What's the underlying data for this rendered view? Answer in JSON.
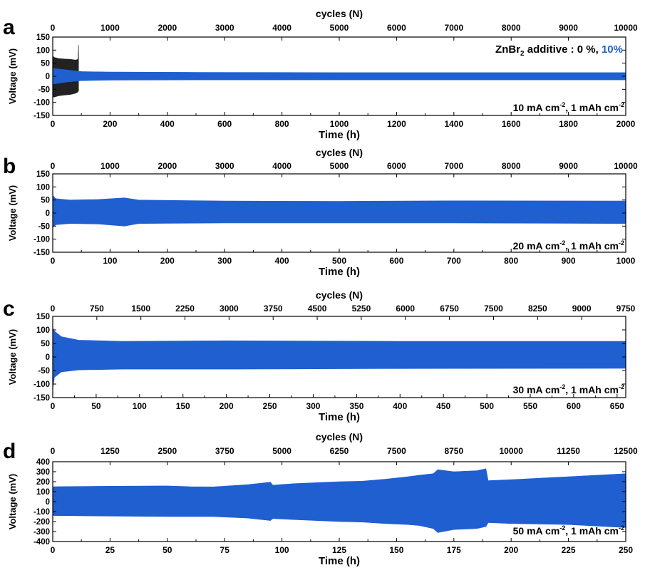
{
  "chart_data": [
    {
      "type": "line",
      "panel_label": "a",
      "xlabel": "Time (h)",
      "ylabel": "Voltage (mV)",
      "x2label": "cycles (N)",
      "xlim": [
        0,
        2000
      ],
      "ylim": [
        -150,
        150
      ],
      "xticks": [
        0,
        200,
        400,
        600,
        800,
        1000,
        1200,
        1400,
        1600,
        1800,
        2000
      ],
      "x2ticks": [
        0,
        1000,
        2000,
        3000,
        4000,
        5000,
        6000,
        7000,
        8000,
        9000,
        10000
      ],
      "yticks": [
        -150,
        -100,
        -50,
        0,
        50,
        100,
        150
      ],
      "legend_text": {
        "prefix": "ZnBr",
        "sub": "2",
        "mid": " additive : 0 %, ",
        "accent": "10%"
      },
      "condition": {
        "c1": "10 mA cm",
        "s1": "-2",
        "c2": ", 1 mAh cm",
        "s2": "-2"
      },
      "series": [
        {
          "name": "0 %",
          "color": "#222222",
          "x": [
            0,
            5,
            20,
            40,
            60,
            80,
            88,
            90
          ],
          "upper": [
            78,
            72,
            68,
            66,
            65,
            62,
            65,
            120
          ],
          "lower": [
            -78,
            -80,
            -75,
            -72,
            -70,
            -65,
            -60,
            -55
          ]
        },
        {
          "name": "10%",
          "color": "#1f5fd0",
          "x": [
            0,
            50,
            100,
            200,
            500,
            1000,
            1500,
            2000
          ],
          "upper": [
            30,
            24,
            18,
            16,
            15,
            14,
            14,
            14
          ],
          "lower": [
            -30,
            -22,
            -17,
            -15,
            -14,
            -14,
            -14,
            -14
          ]
        }
      ]
    },
    {
      "type": "line",
      "panel_label": "b",
      "xlabel": "Time (h)",
      "ylabel": "Voltage (mV)",
      "x2label": "cycles (N)",
      "xlim": [
        0,
        1000
      ],
      "ylim": [
        -150,
        150
      ],
      "xticks": [
        0,
        100,
        200,
        300,
        400,
        500,
        600,
        700,
        800,
        900,
        1000
      ],
      "x2ticks": [
        0,
        1000,
        2000,
        3000,
        4000,
        5000,
        6000,
        7000,
        8000,
        9000,
        10000
      ],
      "yticks": [
        -150,
        -100,
        -50,
        0,
        50,
        100,
        150
      ],
      "condition": {
        "c1": "20 mA cm",
        "s1": "-2",
        "c2": ", 1 mAh cm",
        "s2": "-2"
      },
      "series": [
        {
          "name": "10%",
          "color": "#1f5fd0",
          "x": [
            0,
            5,
            30,
            80,
            125,
            150,
            300,
            500,
            700,
            1000
          ],
          "upper": [
            68,
            55,
            50,
            52,
            58,
            50,
            46,
            45,
            47,
            46
          ],
          "lower": [
            -55,
            -45,
            -40,
            -42,
            -50,
            -40,
            -38,
            -38,
            -38,
            -40
          ]
        }
      ]
    },
    {
      "type": "line",
      "panel_label": "c",
      "xlabel": "Time (h)",
      "ylabel": "Voltage (mV)",
      "x2label": "cycles (N)",
      "xlim": [
        0,
        660
      ],
      "ylim": [
        -150,
        150
      ],
      "xticks": [
        0,
        50,
        100,
        150,
        200,
        250,
        300,
        350,
        400,
        450,
        500,
        550,
        600,
        650
      ],
      "x2ticks": [
        0,
        750,
        1500,
        2250,
        3000,
        3750,
        4500,
        5250,
        6000,
        6750,
        7500,
        8250,
        9000,
        9750
      ],
      "yticks": [
        -150,
        -100,
        -50,
        0,
        50,
        100,
        150
      ],
      "condition": {
        "c1": "30 mA cm",
        "s1": "-2",
        "c2": ", 1 mAh cm",
        "s2": "-2"
      },
      "series": [
        {
          "name": "10%",
          "color": "#1f5fd0",
          "x": [
            0,
            2,
            10,
            30,
            80,
            200,
            400,
            660
          ],
          "upper": [
            110,
            95,
            75,
            62,
            58,
            60,
            58,
            58
          ],
          "lower": [
            -120,
            -75,
            -55,
            -48,
            -45,
            -45,
            -43,
            -42
          ]
        }
      ]
    },
    {
      "type": "line",
      "panel_label": "d",
      "xlabel": "Time (h)",
      "ylabel": "Voltage (mV)",
      "x2label": "cycles (N)",
      "xlim": [
        0,
        250
      ],
      "ylim": [
        -400,
        400
      ],
      "xticks": [
        0,
        25,
        50,
        75,
        100,
        125,
        150,
        175,
        200,
        225,
        250
      ],
      "x2ticks": [
        0,
        1250,
        2500,
        3750,
        5000,
        6250,
        7500,
        8750,
        10000,
        11250,
        12500
      ],
      "yticks": [
        -400,
        -300,
        -200,
        -100,
        0,
        100,
        200,
        300,
        400
      ],
      "condition": {
        "c1": "50 mA cm",
        "s1": "-2",
        "c2": ", 1 mAh cm",
        "s2": "-2"
      },
      "series": [
        {
          "name": "10%",
          "color": "#1f5fd0",
          "x": [
            0,
            25,
            50,
            60,
            70,
            85,
            95,
            96,
            105,
            115,
            125,
            135,
            145,
            155,
            160,
            166,
            168,
            175,
            185,
            189,
            190,
            200,
            225,
            250
          ],
          "upper": [
            150,
            155,
            158,
            150,
            148,
            170,
            195,
            165,
            180,
            190,
            200,
            205,
            225,
            250,
            265,
            280,
            320,
            300,
            310,
            330,
            210,
            220,
            250,
            280
          ],
          "lower": [
            -140,
            -145,
            -150,
            -150,
            -150,
            -165,
            -190,
            -170,
            -180,
            -190,
            -200,
            -205,
            -220,
            -230,
            -240,
            -270,
            -310,
            -280,
            -270,
            -250,
            -210,
            -220,
            -230,
            -260
          ]
        }
      ]
    }
  ]
}
